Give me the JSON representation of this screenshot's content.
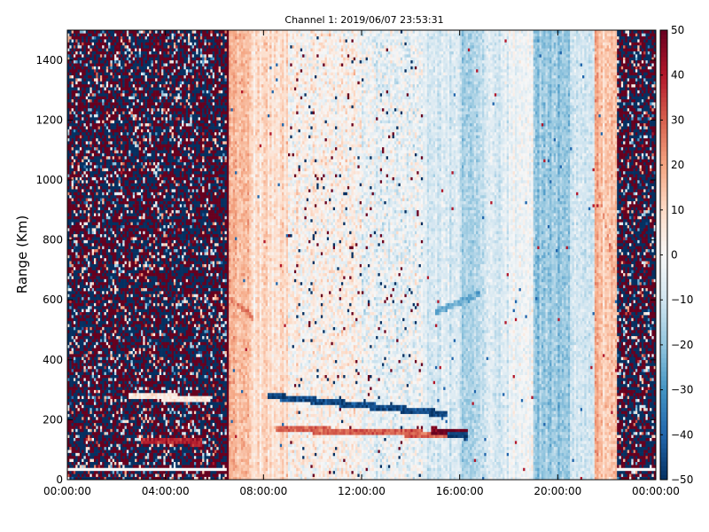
{
  "chart_data": {
    "type": "heatmap",
    "title": "Channel 1: 2019/06/07 23:53:31",
    "xlabel": "",
    "ylabel": "Range (Km)",
    "x_unit": "hours of day",
    "xlim": [
      0,
      24
    ],
    "ylim": [
      0,
      1500
    ],
    "x_ticks": [
      {
        "value": 0,
        "label": "00:00:00"
      },
      {
        "value": 4,
        "label": "04:00:00"
      },
      {
        "value": 8,
        "label": "08:00:00"
      },
      {
        "value": 12,
        "label": "12:00:00"
      },
      {
        "value": 16,
        "label": "16:00:00"
      },
      {
        "value": 20,
        "label": "20:00:00"
      },
      {
        "value": 24,
        "label": "00:00:00"
      }
    ],
    "y_ticks": [
      0,
      200,
      400,
      600,
      800,
      1000,
      1200,
      1400
    ],
    "colorbar": {
      "range": [
        -50,
        50
      ],
      "ticks": [
        50,
        40,
        30,
        20,
        10,
        0,
        -10,
        -20,
        -30,
        -40,
        -50
      ],
      "tick_labels": [
        "50",
        "40",
        "30",
        "20",
        "10",
        "0",
        "−10",
        "−20",
        "−30",
        "−40",
        "−50"
      ],
      "colormap": "RdBu_r",
      "low_color": "#053061",
      "mid_color": "#f7f7f7",
      "high_color": "#67001f"
    },
    "time_segments": [
      {
        "from": 0.0,
        "to": 6.5,
        "level": 0,
        "noise": "saturated"
      },
      {
        "from": 6.5,
        "to": 6.6,
        "level": 48,
        "noise": "none"
      },
      {
        "from": 6.6,
        "to": 7.5,
        "level": 16,
        "noise": "low"
      },
      {
        "from": 7.5,
        "to": 9.0,
        "level": 8,
        "noise": "low"
      },
      {
        "from": 9.0,
        "to": 12.0,
        "level": 2,
        "noise": "medium"
      },
      {
        "from": 12.0,
        "to": 14.5,
        "level": -3,
        "noise": "medium"
      },
      {
        "from": 14.5,
        "to": 16.0,
        "level": -8,
        "noise": "low"
      },
      {
        "from": 16.0,
        "to": 17.0,
        "level": -14,
        "noise": "low"
      },
      {
        "from": 17.0,
        "to": 18.0,
        "level": -8,
        "noise": "low"
      },
      {
        "from": 18.0,
        "to": 19.0,
        "level": -2,
        "noise": "low"
      },
      {
        "from": 19.0,
        "to": 20.5,
        "level": -20,
        "noise": "low"
      },
      {
        "from": 20.5,
        "to": 21.5,
        "level": -8,
        "noise": "low"
      },
      {
        "from": 21.5,
        "to": 22.4,
        "level": 15,
        "noise": "low"
      },
      {
        "from": 22.4,
        "to": 24.0,
        "level": 0,
        "noise": "saturated"
      }
    ],
    "features": [
      {
        "type": "streak",
        "from_x": 8.2,
        "to_x": 15.5,
        "y_start": 280,
        "y_end": 220,
        "value": -45
      },
      {
        "type": "streak",
        "from_x": 8.5,
        "to_x": 16.0,
        "y_start": 170,
        "y_end": 150,
        "value": 30
      },
      {
        "type": "streak",
        "from_x": 14.8,
        "to_x": 16.3,
        "y_start": 165,
        "y_end": 160,
        "value": 50
      },
      {
        "type": "streak",
        "from_x": 15.5,
        "to_x": 16.3,
        "y_start": 150,
        "y_end": 145,
        "value": -48
      },
      {
        "type": "streak",
        "from_x": 15.0,
        "to_x": 16.8,
        "y_start": 560,
        "y_end": 620,
        "value": -25
      },
      {
        "type": "streak",
        "from_x": 6.7,
        "to_x": 7.6,
        "y_start": 600,
        "y_end": 540,
        "value": 25
      },
      {
        "type": "streak",
        "from_x": 21.6,
        "to_x": 22.3,
        "y_start": 1000,
        "y_end": 700,
        "value": 25
      },
      {
        "type": "streak",
        "from_x": 2.5,
        "to_x": 5.8,
        "y_start": 280,
        "y_end": 270,
        "value": 5
      },
      {
        "type": "streak",
        "from_x": 3.0,
        "to_x": 5.5,
        "y_start": 130,
        "y_end": 125,
        "value": 40
      }
    ]
  }
}
